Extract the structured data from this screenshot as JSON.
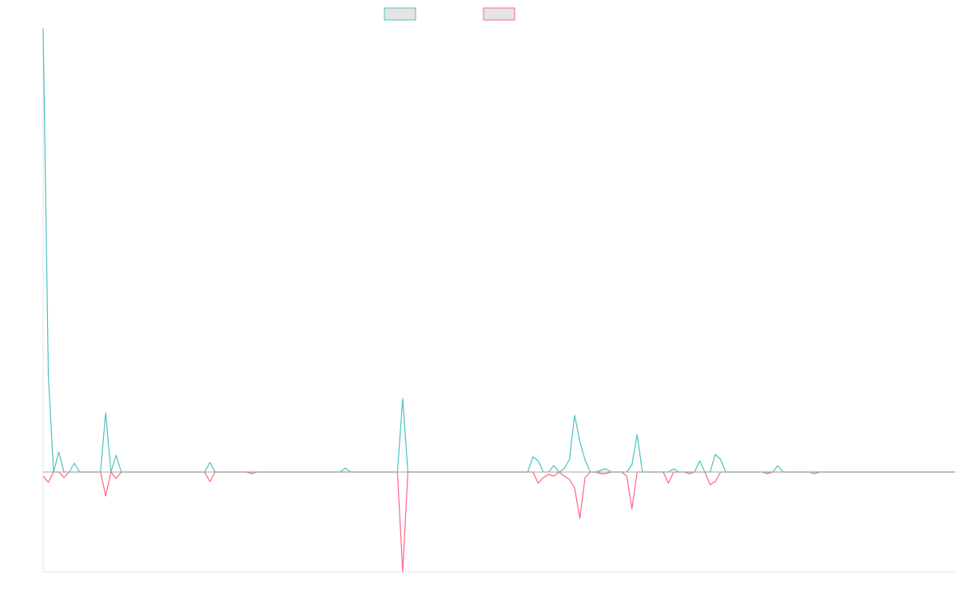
{
  "colors": {
    "series_a": "#4bc0c0",
    "series_b": "#ff6384",
    "swatch_fill": "#e5e5e5",
    "axis": "#e6e6e6",
    "baseline": "#a7a7a7"
  },
  "chart_data": {
    "type": "line",
    "title": "",
    "xlabel": "",
    "ylabel": "",
    "grid": false,
    "legend_position": "top",
    "ylim": [
      -125,
      555
    ],
    "point_count": 176,
    "series": [
      {
        "color": "#4bc0c0",
        "values": [
          555,
          120,
          0,
          25,
          0,
          0,
          11,
          0,
          0,
          0,
          0,
          0,
          74,
          0,
          21,
          0,
          0,
          0,
          0,
          0,
          0,
          0,
          0,
          0,
          0,
          0,
          0,
          0,
          0,
          0,
          0,
          0,
          12,
          0,
          0,
          0,
          0,
          0,
          0,
          0,
          0,
          0,
          0,
          0,
          0,
          0,
          0,
          0,
          0,
          0,
          0,
          0,
          0,
          0,
          0,
          0,
          0,
          0,
          5,
          0,
          0,
          0,
          0,
          0,
          0,
          0,
          0,
          0,
          0,
          92,
          0,
          0,
          0,
          0,
          0,
          0,
          0,
          0,
          0,
          0,
          0,
          0,
          0,
          0,
          0,
          0,
          0,
          0,
          0,
          0,
          0,
          0,
          0,
          0,
          19,
          14,
          0,
          0,
          8,
          0,
          4,
          16,
          71,
          38,
          15,
          0,
          0,
          2,
          4,
          0,
          0,
          0,
          0,
          9,
          47,
          0,
          0,
          0,
          0,
          0,
          0,
          4,
          0,
          0,
          0,
          0,
          14,
          0,
          0,
          22,
          16,
          0,
          0,
          0,
          0,
          0,
          0,
          0,
          0,
          0,
          0,
          8,
          0,
          0,
          0,
          0,
          0,
          0,
          0,
          0,
          0,
          0,
          0,
          0,
          0,
          0,
          0,
          0,
          0,
          0,
          0,
          0,
          0,
          0,
          0,
          0,
          0,
          0,
          0,
          0,
          0,
          0,
          0,
          0,
          0,
          0
        ]
      },
      {
        "color": "#ff6384",
        "values": [
          -5,
          -13,
          0,
          0,
          -7,
          0,
          0,
          0,
          0,
          0,
          0,
          0,
          -30,
          0,
          -8,
          0,
          0,
          0,
          0,
          0,
          0,
          0,
          0,
          0,
          0,
          0,
          0,
          0,
          0,
          0,
          0,
          0,
          -12,
          0,
          0,
          0,
          0,
          0,
          0,
          0,
          -2,
          0,
          0,
          0,
          0,
          0,
          0,
          0,
          0,
          0,
          0,
          0,
          0,
          0,
          0,
          0,
          0,
          0,
          0,
          0,
          0,
          0,
          0,
          0,
          0,
          0,
          0,
          0,
          0,
          -125,
          0,
          0,
          0,
          0,
          0,
          0,
          0,
          0,
          0,
          0,
          0,
          0,
          0,
          0,
          0,
          0,
          0,
          0,
          0,
          0,
          0,
          0,
          0,
          0,
          0,
          -14,
          -7,
          -3,
          -5,
          0,
          -5,
          -9,
          -20,
          -58,
          -7,
          0,
          0,
          -2,
          -2,
          0,
          0,
          0,
          -5,
          -46,
          0,
          0,
          0,
          0,
          0,
          0,
          -14,
          0,
          0,
          0,
          -2,
          0,
          0,
          0,
          -16,
          -12,
          0,
          0,
          0,
          0,
          0,
          0,
          0,
          0,
          0,
          -2,
          0,
          0,
          0,
          0,
          0,
          0,
          0,
          0,
          -2,
          0,
          0,
          0,
          0,
          0,
          0,
          0,
          0,
          0,
          0,
          0,
          0,
          0,
          0,
          0,
          0,
          0,
          0,
          0,
          0,
          0,
          0,
          0,
          0,
          0,
          0,
          0,
          0,
          0,
          0,
          0
        ]
      }
    ]
  }
}
